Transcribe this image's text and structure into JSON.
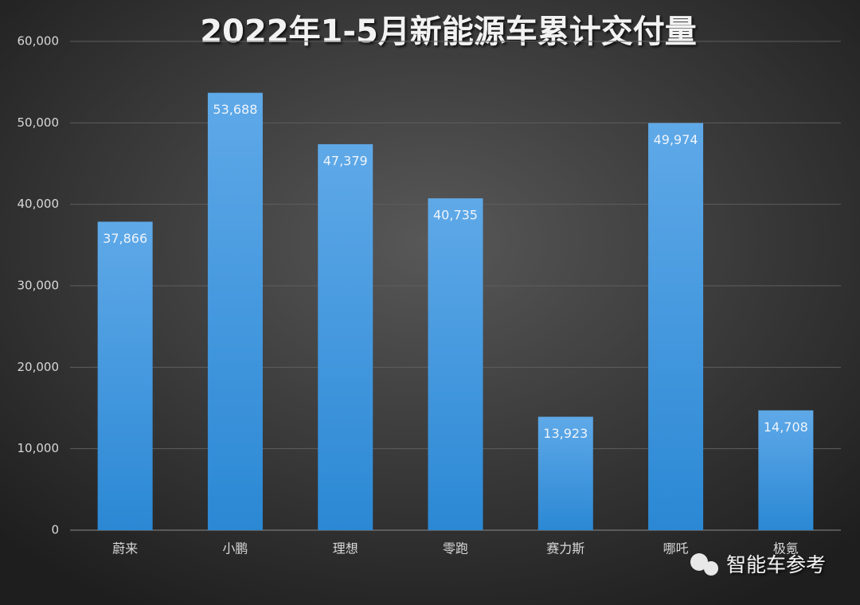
{
  "chart_data": {
    "type": "bar",
    "title": "2022年1-5月新能源车累计交付量",
    "categories": [
      "蔚来",
      "小鹏",
      "理想",
      "零跑",
      "赛力斯",
      "哪吒",
      "极氪"
    ],
    "values": [
      37866,
      53688,
      47379,
      40735,
      13923,
      49974,
      14708
    ],
    "value_labels": [
      "37,866",
      "53,688",
      "47,379",
      "40,735",
      "13,923",
      "49,974",
      "14,708"
    ],
    "color": "#3d97de",
    "ylim": [
      0,
      60000
    ],
    "yticks": [
      0,
      {
        "value": 10000,
        "label": "10,000"
      },
      {
        "value": 20000,
        "label": "20,000"
      },
      {
        "value": 30000,
        "label": "30,000"
      },
      {
        "value": 40000,
        "label": "40,000"
      },
      {
        "value": 50000,
        "label": "50,000"
      },
      {
        "value": 60000,
        "label": "60,000"
      }
    ],
    "grid": true,
    "watermark": "智能车参考"
  }
}
